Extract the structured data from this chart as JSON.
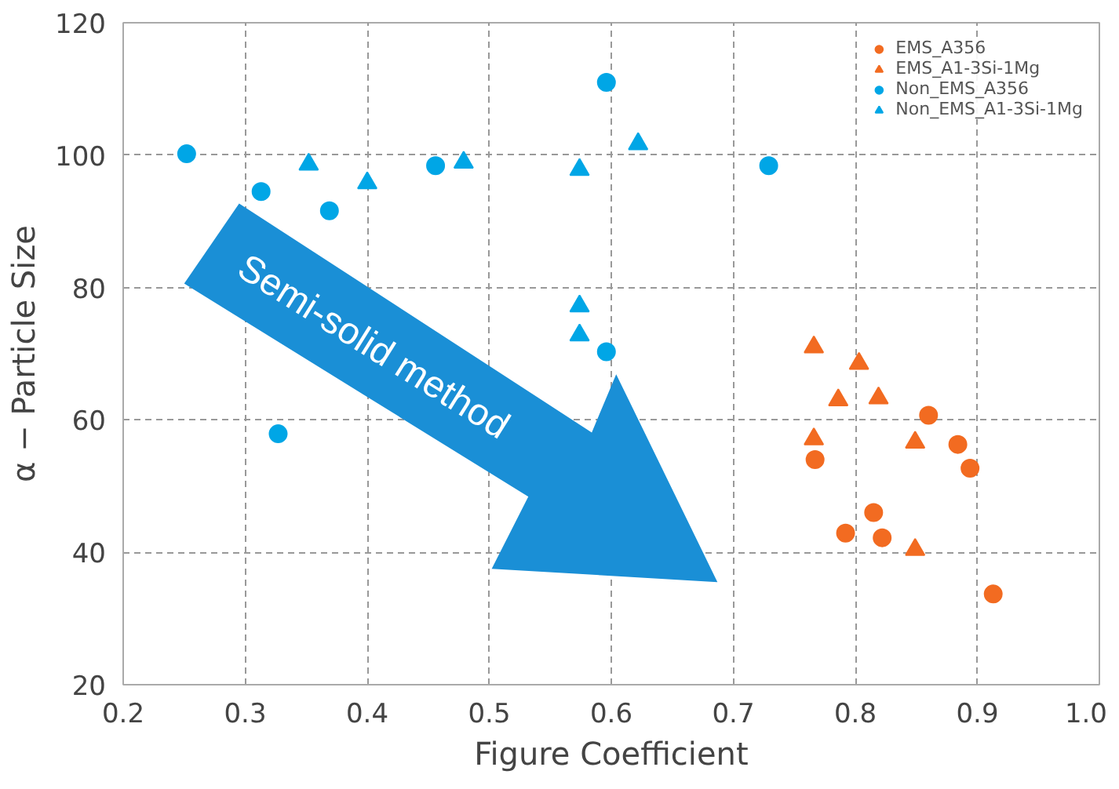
{
  "chart_data": {
    "type": "scatter",
    "xlabel": "Figure Coefficient",
    "ylabel": "α − Particle Size",
    "xlim": [
      0.2,
      1.0
    ],
    "xticks": [
      {
        "value": 0.2,
        "label": "0.2"
      },
      {
        "value": 0.3,
        "label": "0.3"
      },
      {
        "value": 0.4,
        "label": "0.4"
      },
      {
        "value": 0.5,
        "label": "0.5"
      },
      {
        "value": 0.6,
        "label": "0.6"
      },
      {
        "value": 0.7,
        "label": "0.7"
      },
      {
        "value": 0.8,
        "label": "0.8"
      },
      {
        "value": 0.9,
        "label": "0.9"
      },
      {
        "value": 1.0,
        "label": "1.0"
      }
    ],
    "ylim": [
      20,
      120
    ],
    "yticks": [
      20,
      40,
      60,
      80,
      100,
      120
    ],
    "grid": true,
    "legend": "top right",
    "annotations": [
      "Semi-solid method"
    ],
    "series": [
      {
        "name": "EMS_A356",
        "color": "#f26b21",
        "marker": "circle",
        "x": [
          0.767,
          0.792,
          0.815,
          0.86,
          0.884,
          0.894,
          0.822,
          0.913
        ],
        "values": [
          54,
          42.9,
          46,
          60.7,
          56.3,
          52.7,
          42.2,
          33.7
        ]
      },
      {
        "name": "EMS_A1-3Si-1Mg",
        "color": "#f26b21",
        "marker": "triangle",
        "x": [
          0.766,
          0.803,
          0.786,
          0.819,
          0.766,
          0.849,
          0.849
        ],
        "values": [
          71,
          68.5,
          63,
          63.3,
          57.1,
          56.6,
          40.4
        ]
      },
      {
        "name": "Non_EMS_A356",
        "color": "#00a6e6",
        "marker": "circle",
        "x": [
          0.252,
          0.313,
          0.369,
          0.327,
          0.456,
          0.596,
          0.596,
          0.729
        ],
        "values": [
          100.2,
          94.5,
          91.6,
          57.9,
          98.4,
          111,
          70.3,
          98.4
        ]
      },
      {
        "name": "Non_EMS_A1-3Si-1Mg",
        "color": "#00a6e6",
        "marker": "triangle",
        "x": [
          0.352,
          0.4,
          0.479,
          0.574,
          0.574,
          0.574,
          0.622
        ],
        "values": [
          98.6,
          95.8,
          98.9,
          97.8,
          77.2,
          72.8,
          101.7
        ]
      }
    ]
  }
}
